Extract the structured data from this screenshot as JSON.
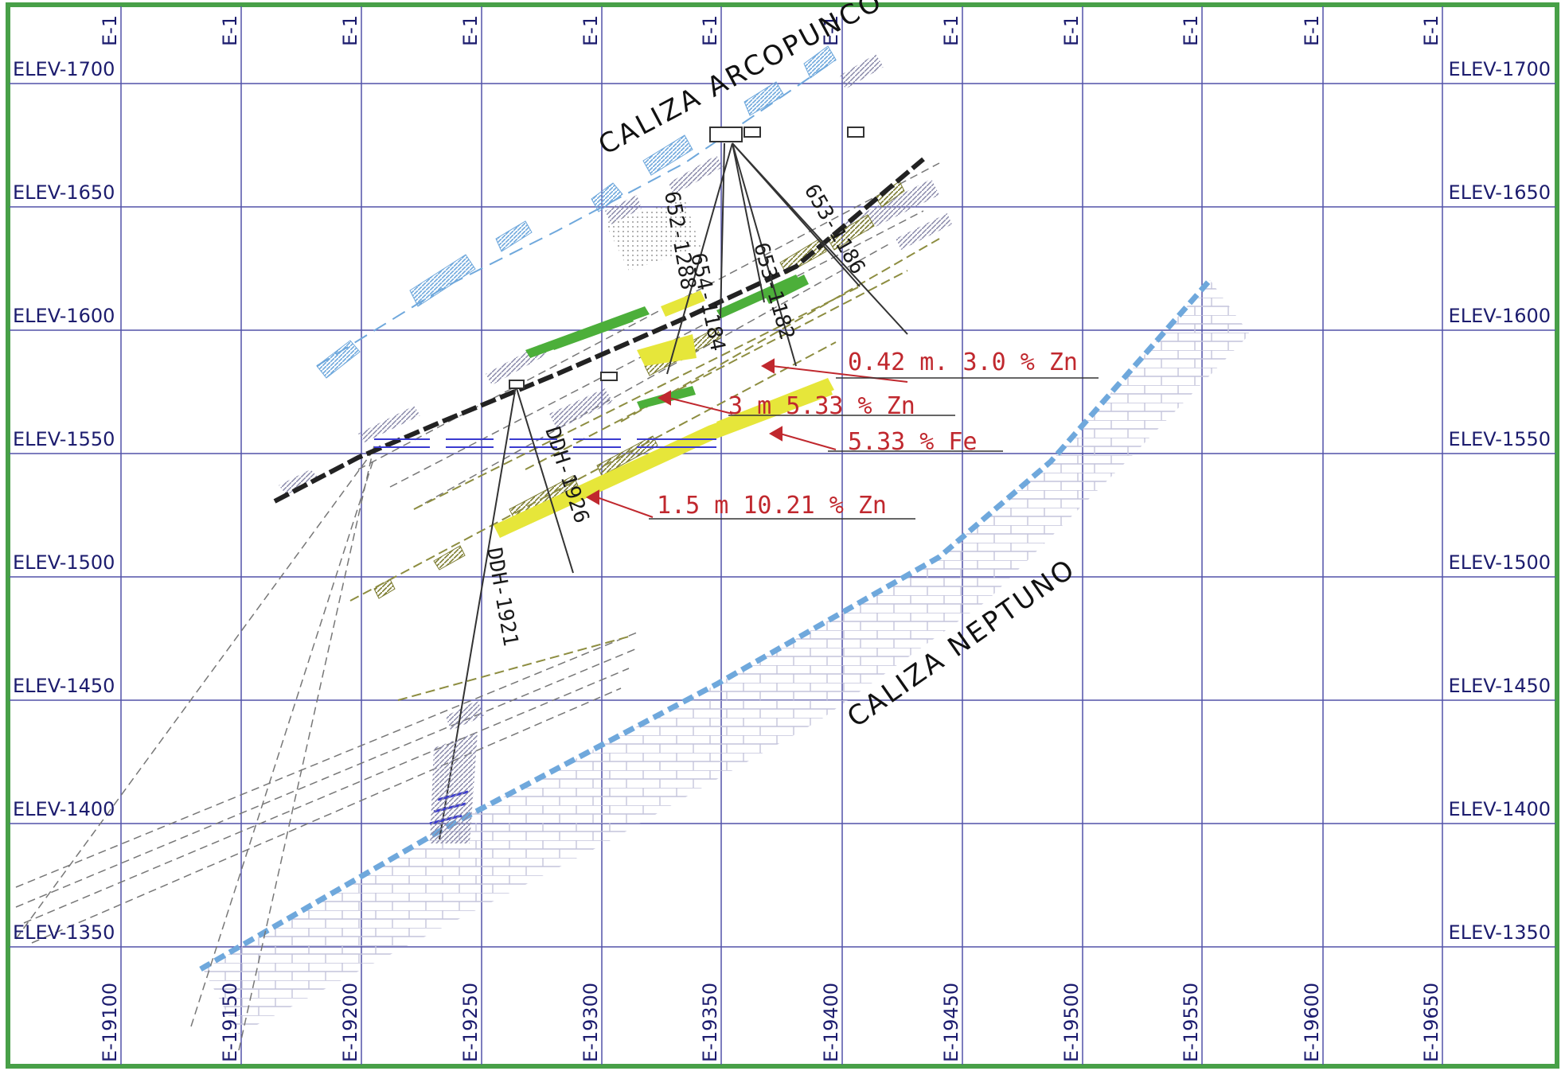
{
  "colors": {
    "frame": "#48a048",
    "grid": "#5252a8",
    "labels": "#1c1c6e",
    "limestone_contact": "#6fa8dc",
    "limestone_hatch": "#c4c4dc",
    "fault": "#222222",
    "ore_yellow": "#e6e63a",
    "ore_green": "#4caf3a",
    "olive_beds": "#8d8d40",
    "gray_beds": "#9a9ab0",
    "assay_text": "#c0282e"
  },
  "elevations": [
    {
      "label": "ELEV-1700",
      "right_label": "ELEV-1700"
    },
    {
      "label": "ELEV-1650",
      "right_label": "ELEV-1650"
    },
    {
      "label": "ELEV-1600",
      "right_label": "ELEV-1600"
    },
    {
      "label": "ELEV-1550",
      "right_label": "ELEV-1550"
    },
    {
      "label": "ELEV-1500",
      "right_label": "ELEV-1500"
    },
    {
      "label": "ELEV-1450",
      "right_label": "ELEV-1450"
    },
    {
      "label": "ELEV-1400",
      "right_label": "ELEV-1400"
    },
    {
      "label": "ELEV-1350",
      "right_label": "ELEV-1350"
    }
  ],
  "eastings_top": [
    "E-1",
    "E-1",
    "E-1",
    "E-1",
    "E-1",
    "E-1",
    "E-1",
    "E-1",
    "E-1",
    "E-1",
    "E-1",
    "E-1"
  ],
  "eastings_bottom": [
    "E-19100",
    "E-19150",
    "E-19200",
    "E-19250",
    "E-19300",
    "E-19350",
    "E-19400",
    "E-19450",
    "E-19500",
    "E-19550",
    "E-19600",
    "E-19650"
  ],
  "units": {
    "arcopunco": "CALIZA ARCOPUNCO",
    "neptuno": "CALIZA NEPTUNO"
  },
  "drill_holes": [
    {
      "label": "DDH-1921"
    },
    {
      "label": "DDH-1926"
    },
    {
      "label": "652-1288"
    },
    {
      "label": "653-1186"
    },
    {
      "label": "654-1184"
    },
    {
      "label": "653-1182"
    }
  ],
  "assays": [
    {
      "text": "0.42 m. 3.0 % Zn"
    },
    {
      "text": "3 m 5.33 % Zn"
    },
    {
      "text": "5.33 % Fe"
    },
    {
      "text": "1.5 m 10.21 % Zn"
    }
  ]
}
